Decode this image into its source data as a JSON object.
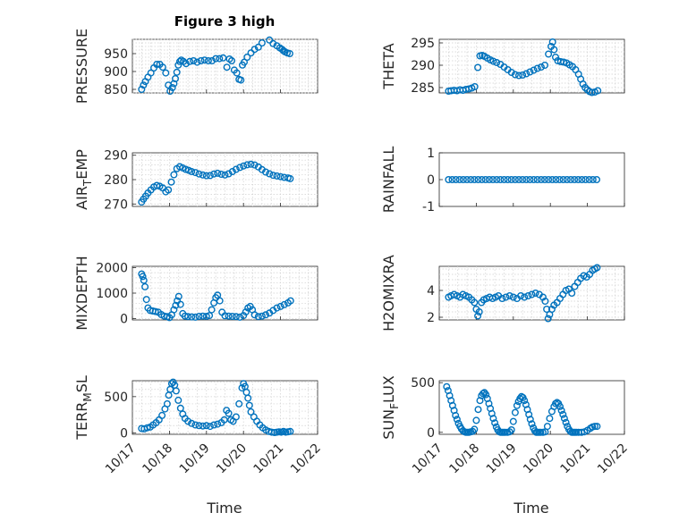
{
  "figure": {
    "title": "Figure 3 high",
    "xlabel": "Time",
    "x_ticks": [
      "10/17",
      "10/18",
      "10/19",
      "10/20",
      "10/21",
      "10/22"
    ],
    "x_range_days": [
      0,
      5
    ],
    "marker_color": "#0072BD"
  },
  "chart_data": [
    {
      "type": "scatter",
      "id": "pressure",
      "ylabel_main": "PRESSURE",
      "ylabel_sub": "",
      "ylim": [
        840,
        990
      ],
      "yticks": [
        850,
        900,
        950
      ],
      "xgrid": true,
      "ygrid": true,
      "x": [
        0.25,
        0.3,
        0.35,
        0.42,
        0.5,
        0.58,
        0.66,
        0.74,
        0.82,
        0.9,
        0.97,
        1.02,
        1.08,
        1.12,
        1.16,
        1.2,
        1.24,
        1.28,
        1.32,
        1.38,
        1.45,
        1.55,
        1.65,
        1.75,
        1.85,
        1.95,
        2.05,
        2.15,
        2.25,
        2.35,
        2.45,
        2.55,
        2.62,
        2.68,
        2.75,
        2.82,
        2.88,
        2.93,
        2.97,
        3.02,
        3.1,
        3.2,
        3.3,
        3.4,
        3.5,
        3.6,
        3.7,
        3.8,
        3.9,
        3.98,
        4.04,
        4.08,
        4.12,
        4.18,
        4.25
      ],
      "y": [
        850,
        862,
        872,
        884,
        896,
        910,
        920,
        920,
        912,
        896,
        862,
        845,
        855,
        866,
        880,
        898,
        918,
        928,
        932,
        928,
        922,
        928,
        930,
        926,
        930,
        932,
        930,
        930,
        936,
        936,
        938,
        912,
        935,
        930,
        904,
        896,
        878,
        876,
        918,
        926,
        940,
        952,
        962,
        968,
        980,
        992,
        988,
        978,
        972,
        966,
        962,
        958,
        955,
        952,
        950
      ]
    },
    {
      "type": "scatter",
      "id": "theta",
      "ylabel_main": "THETA",
      "ylabel_sub": "",
      "ylim": [
        283.8,
        295.8
      ],
      "yticks": [
        285,
        290,
        295
      ],
      "xgrid": true,
      "ygrid": true,
      "x": [
        0.25,
        0.32,
        0.4,
        0.48,
        0.56,
        0.64,
        0.72,
        0.8,
        0.88,
        0.96,
        1.04,
        1.1,
        1.16,
        1.22,
        1.3,
        1.38,
        1.46,
        1.55,
        1.65,
        1.75,
        1.85,
        1.95,
        2.05,
        2.15,
        2.25,
        2.35,
        2.45,
        2.55,
        2.65,
        2.75,
        2.85,
        2.95,
        3.02,
        3.06,
        3.1,
        3.14,
        3.2,
        3.28,
        3.36,
        3.44,
        3.52,
        3.6,
        3.68,
        3.76,
        3.82,
        3.88,
        3.94,
        4.0,
        4.06,
        4.12,
        4.2,
        4.28
      ],
      "y": [
        284.2,
        284.3,
        284.4,
        284.3,
        284.5,
        284.4,
        284.6,
        284.7,
        284.9,
        285.2,
        289.5,
        292.1,
        292.2,
        292.0,
        291.6,
        291.2,
        290.9,
        290.6,
        290.2,
        289.6,
        289.0,
        288.4,
        287.9,
        287.7,
        287.8,
        288.1,
        288.5,
        288.9,
        289.3,
        289.6,
        290.0,
        292.5,
        294.2,
        295.2,
        293.5,
        291.8,
        291.0,
        290.8,
        290.7,
        290.5,
        290.1,
        289.7,
        289.0,
        288.0,
        286.9,
        285.8,
        285.0,
        284.5,
        284.1,
        283.9,
        284.0,
        284.3
      ]
    },
    {
      "type": "scatter",
      "id": "air_temp",
      "ylabel_main": "AIR",
      "ylabel_sub": "T",
      "ylabel_after": "EMP",
      "ylim": [
        269,
        291
      ],
      "yticks": [
        270,
        280,
        290
      ],
      "xgrid": true,
      "ygrid": true,
      "x": [
        0.25,
        0.3,
        0.36,
        0.42,
        0.5,
        0.58,
        0.66,
        0.74,
        0.82,
        0.9,
        0.97,
        1.05,
        1.12,
        1.2,
        1.28,
        1.36,
        1.44,
        1.52,
        1.6,
        1.7,
        1.8,
        1.9,
        2.0,
        2.1,
        2.2,
        2.3,
        2.4,
        2.5,
        2.6,
        2.7,
        2.8,
        2.9,
        3.0,
        3.1,
        3.2,
        3.3,
        3.4,
        3.5,
        3.6,
        3.7,
        3.8,
        3.9,
        4.0,
        4.1,
        4.2,
        4.26
      ],
      "y": [
        270.8,
        272.0,
        273.2,
        274.5,
        275.8,
        277.0,
        277.6,
        277.3,
        276.6,
        275.0,
        275.8,
        279.0,
        282.0,
        284.5,
        285.3,
        284.8,
        284.2,
        283.8,
        283.3,
        282.9,
        282.3,
        281.9,
        281.6,
        281.7,
        282.3,
        282.6,
        282.2,
        281.9,
        282.4,
        283.3,
        284.2,
        285.0,
        285.6,
        286.1,
        286.3,
        286.0,
        285.2,
        284.1,
        283.1,
        282.4,
        281.8,
        281.5,
        281.2,
        280.9,
        280.7,
        280.4
      ]
    },
    {
      "type": "scatter",
      "id": "rainfall",
      "ylabel_main": "RAINFALL",
      "ylabel_sub": "",
      "ylim": [
        -1,
        1
      ],
      "yticks": [
        -1,
        0,
        1
      ],
      "xgrid": false,
      "ygrid": false,
      "x": [
        0.25,
        0.35,
        0.45,
        0.55,
        0.65,
        0.75,
        0.85,
        0.95,
        1.05,
        1.15,
        1.25,
        1.35,
        1.45,
        1.55,
        1.65,
        1.75,
        1.85,
        1.95,
        2.05,
        2.15,
        2.25,
        2.35,
        2.45,
        2.55,
        2.65,
        2.75,
        2.85,
        2.95,
        3.05,
        3.15,
        3.25,
        3.35,
        3.45,
        3.55,
        3.65,
        3.75,
        3.85,
        3.95,
        4.05,
        4.15,
        4.25
      ],
      "y": [
        0,
        0,
        0,
        0,
        0,
        0,
        0,
        0,
        0,
        0,
        0,
        0,
        0,
        0,
        0,
        0,
        0,
        0,
        0,
        0,
        0,
        0,
        0,
        0,
        0,
        0,
        0,
        0,
        0,
        0,
        0,
        0,
        0,
        0,
        0,
        0,
        0,
        0,
        0,
        0,
        0
      ]
    },
    {
      "type": "scatter",
      "id": "mixdepth",
      "ylabel_main": "MIXDEPTH",
      "ylabel_sub": "",
      "ylim": [
        -50,
        2050
      ],
      "yticks": [
        0,
        1000,
        2000
      ],
      "xgrid": true,
      "ygrid": true,
      "x": [
        0.25,
        0.28,
        0.31,
        0.34,
        0.38,
        0.42,
        0.48,
        0.55,
        0.62,
        0.7,
        0.78,
        0.86,
        0.94,
        1.0,
        1.06,
        1.12,
        1.17,
        1.21,
        1.25,
        1.3,
        1.36,
        1.42,
        1.5,
        1.6,
        1.7,
        1.8,
        1.9,
        2.0,
        2.08,
        2.14,
        2.2,
        2.25,
        2.3,
        2.36,
        2.42,
        2.5,
        2.6,
        2.7,
        2.8,
        2.9,
        3.0,
        3.06,
        3.12,
        3.18,
        3.24,
        3.3,
        3.4,
        3.5,
        3.6,
        3.7,
        3.8,
        3.9,
        4.0,
        4.1,
        4.2,
        4.27
      ],
      "y": [
        1750,
        1650,
        1500,
        1250,
        750,
        420,
        320,
        300,
        280,
        250,
        160,
        100,
        80,
        40,
        150,
        350,
        520,
        700,
        870,
        560,
        200,
        100,
        80,
        70,
        60,
        90,
        100,
        90,
        120,
        350,
        620,
        820,
        920,
        700,
        250,
        110,
        100,
        90,
        80,
        60,
        120,
        260,
        420,
        480,
        350,
        150,
        80,
        100,
        150,
        220,
        320,
        420,
        480,
        550,
        620,
        700
      ]
    },
    {
      "type": "scatter",
      "id": "h2omixra",
      "ylabel_main": "H2OMIXRA",
      "ylabel_sub": "",
      "ylim": [
        1.8,
        5.8
      ],
      "yticks": [
        2,
        4
      ],
      "xgrid": true,
      "ygrid": true,
      "x": [
        0.25,
        0.32,
        0.4,
        0.48,
        0.56,
        0.64,
        0.72,
        0.8,
        0.88,
        0.95,
        1.0,
        1.04,
        1.08,
        1.14,
        1.2,
        1.28,
        1.36,
        1.44,
        1.52,
        1.6,
        1.7,
        1.8,
        1.9,
        2.0,
        2.1,
        2.2,
        2.3,
        2.4,
        2.5,
        2.6,
        2.7,
        2.8,
        2.86,
        2.9,
        2.94,
        2.98,
        3.04,
        3.1,
        3.18,
        3.26,
        3.34,
        3.42,
        3.5,
        3.58,
        3.66,
        3.74,
        3.82,
        3.9,
        3.98,
        4.06,
        4.14,
        4.2,
        4.26
      ],
      "y": [
        3.5,
        3.6,
        3.7,
        3.6,
        3.5,
        3.7,
        3.6,
        3.5,
        3.3,
        3.1,
        2.6,
        2.1,
        2.4,
        3.1,
        3.3,
        3.4,
        3.5,
        3.4,
        3.5,
        3.6,
        3.4,
        3.5,
        3.6,
        3.5,
        3.4,
        3.6,
        3.5,
        3.6,
        3.7,
        3.8,
        3.7,
        3.5,
        3.2,
        2.6,
        1.9,
        2.2,
        2.6,
        2.9,
        3.1,
        3.4,
        3.7,
        4.0,
        4.1,
        3.8,
        4.3,
        4.6,
        4.9,
        5.1,
        5.0,
        5.2,
        5.5,
        5.6,
        5.7
      ]
    },
    {
      "type": "scatter",
      "id": "terr_msl",
      "ylabel_main": "TERR",
      "ylabel_sub": "M",
      "ylabel_after": "SL",
      "ylim": [
        -20,
        720
      ],
      "yticks": [
        0,
        500
      ],
      "xgrid": true,
      "ygrid": true,
      "x": [
        0.25,
        0.32,
        0.4,
        0.48,
        0.56,
        0.64,
        0.72,
        0.8,
        0.88,
        0.94,
        0.98,
        1.02,
        1.06,
        1.1,
        1.14,
        1.18,
        1.24,
        1.3,
        1.36,
        1.42,
        1.5,
        1.6,
        1.7,
        1.8,
        1.9,
        2.0,
        2.1,
        2.2,
        2.3,
        2.4,
        2.48,
        2.54,
        2.6,
        2.66,
        2.72,
        2.8,
        2.88,
        2.96,
        3.0,
        3.04,
        3.08,
        3.12,
        3.16,
        3.2,
        3.28,
        3.36,
        3.44,
        3.52,
        3.6,
        3.68,
        3.76,
        3.84,
        3.9,
        3.96,
        4.02,
        4.08,
        4.14,
        4.2,
        4.26
      ],
      "y": [
        60,
        55,
        70,
        80,
        110,
        140,
        180,
        240,
        330,
        400,
        520,
        600,
        680,
        700,
        660,
        580,
        450,
        340,
        260,
        200,
        160,
        130,
        110,
        100,
        95,
        100,
        90,
        110,
        120,
        140,
        180,
        310,
        270,
        180,
        160,
        220,
        400,
        620,
        680,
        640,
        560,
        480,
        380,
        290,
        220,
        160,
        110,
        70,
        40,
        20,
        10,
        5,
        10,
        15,
        10,
        20,
        10,
        15,
        20
      ]
    },
    {
      "type": "scatter",
      "id": "sun_flux",
      "ylabel_main": "SUN",
      "ylabel_sub": "F",
      "ylabel_after": "LUX",
      "ylim": [
        -20,
        520
      ],
      "yticks": [
        0,
        500
      ],
      "xgrid": false,
      "ygrid": false,
      "x": [
        0.2,
        0.24,
        0.28,
        0.32,
        0.36,
        0.4,
        0.44,
        0.48,
        0.52,
        0.56,
        0.6,
        0.64,
        0.68,
        0.72,
        0.76,
        0.8,
        0.85,
        0.9,
        0.95,
        1.0,
        1.05,
        1.1,
        1.14,
        1.18,
        1.22,
        1.26,
        1.3,
        1.34,
        1.38,
        1.42,
        1.46,
        1.5,
        1.54,
        1.58,
        1.62,
        1.66,
        1.7,
        1.74,
        1.78,
        1.84,
        1.9,
        1.95,
        2.0,
        2.05,
        2.1,
        2.14,
        2.18,
        2.22,
        2.26,
        2.3,
        2.34,
        2.38,
        2.42,
        2.46,
        2.5,
        2.54,
        2.58,
        2.62,
        2.66,
        2.7,
        2.74,
        2.8,
        2.86,
        2.92,
        2.98,
        3.04,
        3.1,
        3.14,
        3.18,
        3.22,
        3.26,
        3.3,
        3.34,
        3.38,
        3.42,
        3.46,
        3.5,
        3.54,
        3.58,
        3.62,
        3.66,
        3.7,
        3.76,
        3.84,
        3.92,
        4.0,
        4.08,
        4.14,
        4.2,
        4.26
      ],
      "y": [
        460,
        420,
        370,
        320,
        270,
        220,
        170,
        130,
        90,
        60,
        35,
        15,
        5,
        0,
        0,
        0,
        5,
        10,
        30,
        120,
        230,
        320,
        370,
        390,
        400,
        380,
        340,
        290,
        240,
        190,
        140,
        95,
        55,
        25,
        5,
        0,
        0,
        0,
        0,
        0,
        5,
        25,
        110,
        200,
        270,
        310,
        340,
        360,
        350,
        320,
        280,
        230,
        180,
        130,
        85,
        45,
        15,
        0,
        0,
        0,
        0,
        0,
        5,
        60,
        140,
        210,
        260,
        290,
        300,
        290,
        260,
        220,
        180,
        140,
        100,
        60,
        30,
        10,
        0,
        0,
        0,
        0,
        0,
        0,
        5,
        20,
        40,
        55,
        60,
        60
      ]
    }
  ]
}
